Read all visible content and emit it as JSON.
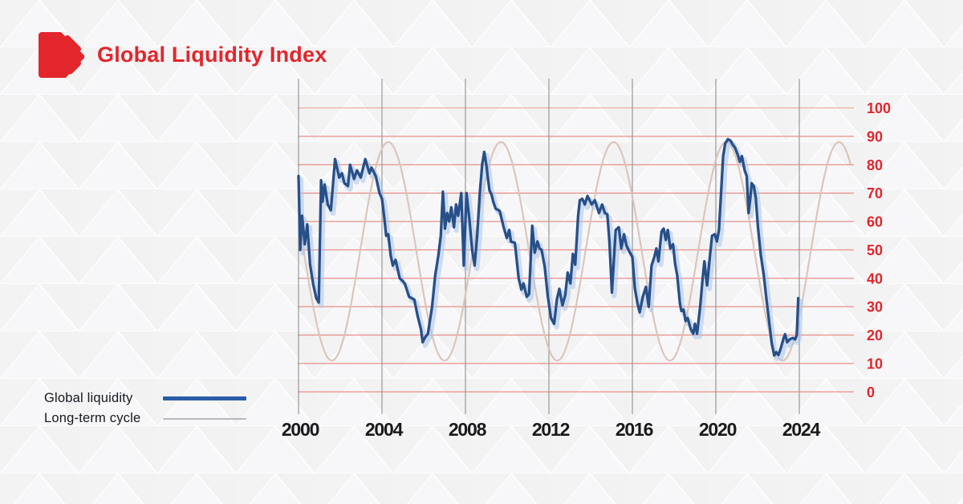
{
  "header": {
    "title": "Global Liquidity Index"
  },
  "legend": {
    "items": [
      {
        "label": "Global liquidity",
        "color": "#2a5ca8",
        "style": "thick"
      },
      {
        "label": "Long-term cycle",
        "color": "#b7b8bb",
        "style": "thin"
      }
    ]
  },
  "colors": {
    "brand_red": "#e3262b",
    "axis_value_red": "#e4252b",
    "grid_red": "#e57d75",
    "grid_red_top": "#e9a186",
    "grid_gray": "#8f9093",
    "year_label": "#1a1a1c",
    "liquidity": "#274f88",
    "liquidity_halo": "#aac5e7",
    "cycle": "#d9c3b8",
    "background": "#f2f2f3"
  },
  "chart_data": {
    "type": "line",
    "title": "Global Liquidity Index",
    "xlabel": "",
    "ylabel": "",
    "ylim": [
      0,
      100
    ],
    "xlim": [
      2000,
      2026.5
    ],
    "grid": "horizontal-red and vertical-gray at year ticks",
    "legend_position": "bottom-left",
    "y_ticks": [
      100,
      90,
      80,
      70,
      60,
      50,
      40,
      30,
      20,
      10,
      0
    ],
    "x_ticks": [
      2000,
      2004,
      2008,
      2012,
      2016,
      2020,
      2024
    ],
    "series": [
      {
        "name": "Global liquidity",
        "type": "jagged-line",
        "points": [
          [
            2000.0,
            76
          ],
          [
            2000.08,
            50
          ],
          [
            2000.17,
            62
          ],
          [
            2000.3,
            52
          ],
          [
            2000.42,
            59
          ],
          [
            2000.55,
            45
          ],
          [
            2000.7,
            38
          ],
          [
            2000.85,
            33
          ],
          [
            2000.97,
            31.5
          ],
          [
            2001.03,
            55
          ],
          [
            2001.08,
            74.5
          ],
          [
            2001.15,
            67
          ],
          [
            2001.25,
            73
          ],
          [
            2001.4,
            66
          ],
          [
            2001.55,
            64
          ],
          [
            2001.75,
            82
          ],
          [
            2001.95,
            75.5
          ],
          [
            2002.08,
            77
          ],
          [
            2002.2,
            73.5
          ],
          [
            2002.37,
            72.5
          ],
          [
            2002.47,
            80
          ],
          [
            2002.66,
            75
          ],
          [
            2002.8,
            78
          ],
          [
            2002.98,
            75.5
          ],
          [
            2003.2,
            82
          ],
          [
            2003.4,
            77
          ],
          [
            2003.5,
            79
          ],
          [
            2003.7,
            76
          ],
          [
            2003.88,
            70
          ],
          [
            2004.0,
            68
          ],
          [
            2004.1,
            62
          ],
          [
            2004.2,
            55
          ],
          [
            2004.3,
            55.5
          ],
          [
            2004.42,
            48
          ],
          [
            2004.52,
            44.5
          ],
          [
            2004.65,
            46.5
          ],
          [
            2004.85,
            40
          ],
          [
            2005.0,
            39
          ],
          [
            2005.1,
            38
          ],
          [
            2005.3,
            33.5
          ],
          [
            2005.55,
            32.5
          ],
          [
            2005.7,
            27
          ],
          [
            2005.87,
            22
          ],
          [
            2005.95,
            17.5
          ],
          [
            2006.05,
            19
          ],
          [
            2006.2,
            20.5
          ],
          [
            2006.4,
            30
          ],
          [
            2006.55,
            41
          ],
          [
            2006.7,
            48
          ],
          [
            2006.82,
            55
          ],
          [
            2006.92,
            70.5
          ],
          [
            2007.02,
            57.5
          ],
          [
            2007.12,
            63
          ],
          [
            2007.22,
            60
          ],
          [
            2007.32,
            65
          ],
          [
            2007.45,
            58
          ],
          [
            2007.55,
            66
          ],
          [
            2007.65,
            62
          ],
          [
            2007.8,
            70
          ],
          [
            2007.92,
            44.5
          ],
          [
            2008.05,
            70
          ],
          [
            2008.2,
            60
          ],
          [
            2008.32,
            50
          ],
          [
            2008.44,
            44.5
          ],
          [
            2008.56,
            55
          ],
          [
            2008.69,
            70
          ],
          [
            2008.8,
            80
          ],
          [
            2008.9,
            84.5
          ],
          [
            2009.0,
            80
          ],
          [
            2009.08,
            75
          ],
          [
            2009.15,
            71
          ],
          [
            2009.25,
            69.5
          ],
          [
            2009.33,
            67
          ],
          [
            2009.45,
            64.5
          ],
          [
            2009.64,
            63.8
          ],
          [
            2009.83,
            58
          ],
          [
            2009.98,
            54.2
          ],
          [
            2010.1,
            57
          ],
          [
            2010.18,
            52.9
          ],
          [
            2010.37,
            52.5
          ],
          [
            2010.55,
            40
          ],
          [
            2010.68,
            36
          ],
          [
            2010.78,
            38.2
          ],
          [
            2010.94,
            33.5
          ],
          [
            2011.05,
            34.5
          ],
          [
            2011.2,
            58.5
          ],
          [
            2011.32,
            49
          ],
          [
            2011.45,
            53
          ],
          [
            2011.55,
            50.5
          ],
          [
            2011.65,
            50
          ],
          [
            2011.8,
            44
          ],
          [
            2011.95,
            33.5
          ],
          [
            2012.1,
            26
          ],
          [
            2012.25,
            24
          ],
          [
            2012.38,
            32.5
          ],
          [
            2012.5,
            36.3
          ],
          [
            2012.65,
            30.5
          ],
          [
            2012.78,
            34
          ],
          [
            2012.9,
            42
          ],
          [
            2013.03,
            38.2
          ],
          [
            2013.15,
            48.6
          ],
          [
            2013.26,
            44.8
          ],
          [
            2013.4,
            62
          ],
          [
            2013.48,
            67.5
          ],
          [
            2013.6,
            68
          ],
          [
            2013.72,
            66
          ],
          [
            2013.85,
            69
          ],
          [
            2014.05,
            66
          ],
          [
            2014.2,
            67.5
          ],
          [
            2014.4,
            63
          ],
          [
            2014.55,
            66
          ],
          [
            2014.68,
            63
          ],
          [
            2014.8,
            62.5
          ],
          [
            2014.9,
            53
          ],
          [
            2015.02,
            35
          ],
          [
            2015.2,
            57
          ],
          [
            2015.35,
            58
          ],
          [
            2015.47,
            50.5
          ],
          [
            2015.6,
            55.5
          ],
          [
            2015.72,
            51.5
          ],
          [
            2015.85,
            49.5
          ],
          [
            2016.0,
            47.5
          ],
          [
            2016.12,
            36.5
          ],
          [
            2016.25,
            31
          ],
          [
            2016.35,
            28
          ],
          [
            2016.5,
            33.5
          ],
          [
            2016.65,
            37
          ],
          [
            2016.78,
            30
          ],
          [
            2016.92,
            44.5
          ],
          [
            2017.05,
            47.5
          ],
          [
            2017.15,
            50.5
          ],
          [
            2017.25,
            46
          ],
          [
            2017.4,
            56.5
          ],
          [
            2017.5,
            57.5
          ],
          [
            2017.6,
            53.5
          ],
          [
            2017.7,
            57
          ],
          [
            2017.82,
            50.5
          ],
          [
            2017.95,
            52
          ],
          [
            2018.05,
            45
          ],
          [
            2018.15,
            41
          ],
          [
            2018.28,
            31
          ],
          [
            2018.35,
            28.5
          ],
          [
            2018.45,
            29
          ],
          [
            2018.55,
            25
          ],
          [
            2018.65,
            26
          ],
          [
            2018.8,
            22
          ],
          [
            2018.92,
            20.5
          ],
          [
            2019.0,
            24
          ],
          [
            2019.1,
            20.5
          ],
          [
            2019.25,
            30
          ],
          [
            2019.35,
            38.5
          ],
          [
            2019.45,
            46
          ],
          [
            2019.58,
            37.5
          ],
          [
            2019.72,
            48
          ],
          [
            2019.82,
            55
          ],
          [
            2019.95,
            55.5
          ],
          [
            2020.05,
            53
          ],
          [
            2020.15,
            57
          ],
          [
            2020.25,
            70
          ],
          [
            2020.35,
            83
          ],
          [
            2020.45,
            87.5
          ],
          [
            2020.58,
            89
          ],
          [
            2020.7,
            88.5
          ],
          [
            2020.82,
            87
          ],
          [
            2020.92,
            86
          ],
          [
            2021.05,
            83.5
          ],
          [
            2021.15,
            81
          ],
          [
            2021.25,
            83
          ],
          [
            2021.38,
            78
          ],
          [
            2021.48,
            76
          ],
          [
            2021.57,
            63
          ],
          [
            2021.65,
            68
          ],
          [
            2021.72,
            73.5
          ],
          [
            2021.82,
            72.5
          ],
          [
            2021.92,
            68
          ],
          [
            2022.02,
            58
          ],
          [
            2022.15,
            48.5
          ],
          [
            2022.3,
            41
          ],
          [
            2022.42,
            33
          ],
          [
            2022.55,
            25
          ],
          [
            2022.68,
            17
          ],
          [
            2022.8,
            12.8
          ],
          [
            2022.9,
            14
          ],
          [
            2023.0,
            13
          ],
          [
            2023.12,
            15.5
          ],
          [
            2023.25,
            19
          ],
          [
            2023.32,
            20.3
          ],
          [
            2023.42,
            17.5
          ],
          [
            2023.55,
            18.5
          ],
          [
            2023.68,
            19
          ],
          [
            2023.8,
            18.5
          ],
          [
            2023.88,
            20
          ],
          [
            2023.95,
            33
          ]
        ]
      },
      {
        "name": "Long-term cycle",
        "type": "sine",
        "midline": 49.5,
        "amplitude": 38.5,
        "min": 11,
        "max": 88,
        "period_years": 5.4,
        "peak_year": 2004.3,
        "range_years": [
          2000,
          2026.46
        ]
      }
    ]
  }
}
